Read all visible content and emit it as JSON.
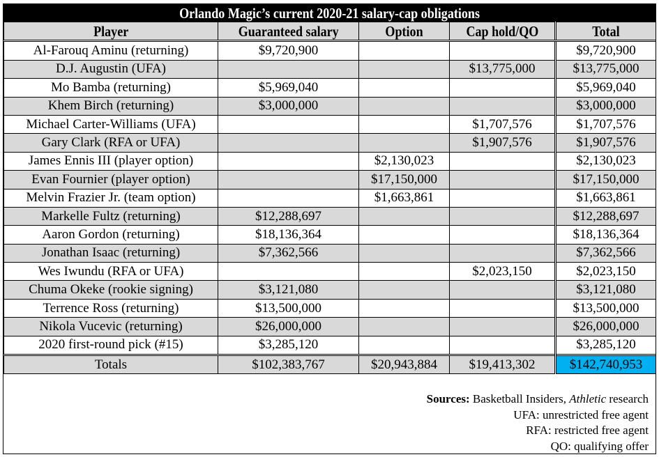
{
  "title": "Orlando Magic’s current 2020-21 salary-cap obligations",
  "columns": [
    "Player",
    "Guaranteed salary",
    "Option",
    "Cap hold/QO",
    "Total"
  ],
  "rows": [
    [
      "Al-Farouq Aminu (returning)",
      "$9,720,900",
      "",
      "",
      "$9,720,900"
    ],
    [
      "D.J. Augustin (UFA)",
      "",
      "",
      "$13,775,000",
      "$13,775,000"
    ],
    [
      "Mo Bamba (returning)",
      "$5,969,040",
      "",
      "",
      "$5,969,040"
    ],
    [
      "Khem Birch (returning)",
      "$3,000,000",
      "",
      "",
      "$3,000,000"
    ],
    [
      "Michael Carter-Williams (UFA)",
      "",
      "",
      "$1,707,576",
      "$1,707,576"
    ],
    [
      "Gary Clark (RFA or UFA)",
      "",
      "",
      "$1,907,576",
      "$1,907,576"
    ],
    [
      "James Ennis III (player option)",
      "",
      "$2,130,023",
      "",
      "$2,130,023"
    ],
    [
      "Evan Fournier (player option)",
      "",
      "$17,150,000",
      "",
      "$17,150,000"
    ],
    [
      "Melvin Frazier Jr. (team option)",
      "",
      "$1,663,861",
      "",
      "$1,663,861"
    ],
    [
      "Markelle Fultz (returning)",
      "$12,288,697",
      "",
      "",
      "$12,288,697"
    ],
    [
      "Aaron Gordon (returning)",
      "$18,136,364",
      "",
      "",
      "$18,136,364"
    ],
    [
      "Jonathan Isaac (returning)",
      "$7,362,566",
      "",
      "",
      "$7,362,566"
    ],
    [
      "Wes Iwundu (RFA or UFA)",
      "",
      "",
      "$2,023,150",
      "$2,023,150"
    ],
    [
      "Chuma Okeke (rookie signing)",
      "$3,121,080",
      "",
      "",
      "$3,121,080"
    ],
    [
      "Terrence Ross (returning)",
      "$13,500,000",
      "",
      "",
      "$13,500,000"
    ],
    [
      "Nikola Vucevic (returning)",
      "$26,000,000",
      "",
      "",
      "$26,000,000"
    ],
    [
      "2020 first-round pick (#15)",
      "$3,285,120",
      "",
      "",
      "$3,285,120"
    ]
  ],
  "totals": [
    "Totals",
    "$102,383,767",
    "$20,943,884",
    "$19,413,302",
    "$142,740,953"
  ],
  "notes": {
    "sources_label": "Sources:",
    "sources_text_1": " Basketball Insiders, ",
    "sources_italic": "Athletic",
    "sources_text_2": " research",
    "ufa": "UFA: unrestricted free agent",
    "rfa": "RFA: restricted free agent",
    "qo": "QO: qualifying offer"
  },
  "colors": {
    "header_bg": "#d9d9d9",
    "title_bg": "#000000",
    "grand_total_highlight": "#00b0f0"
  }
}
